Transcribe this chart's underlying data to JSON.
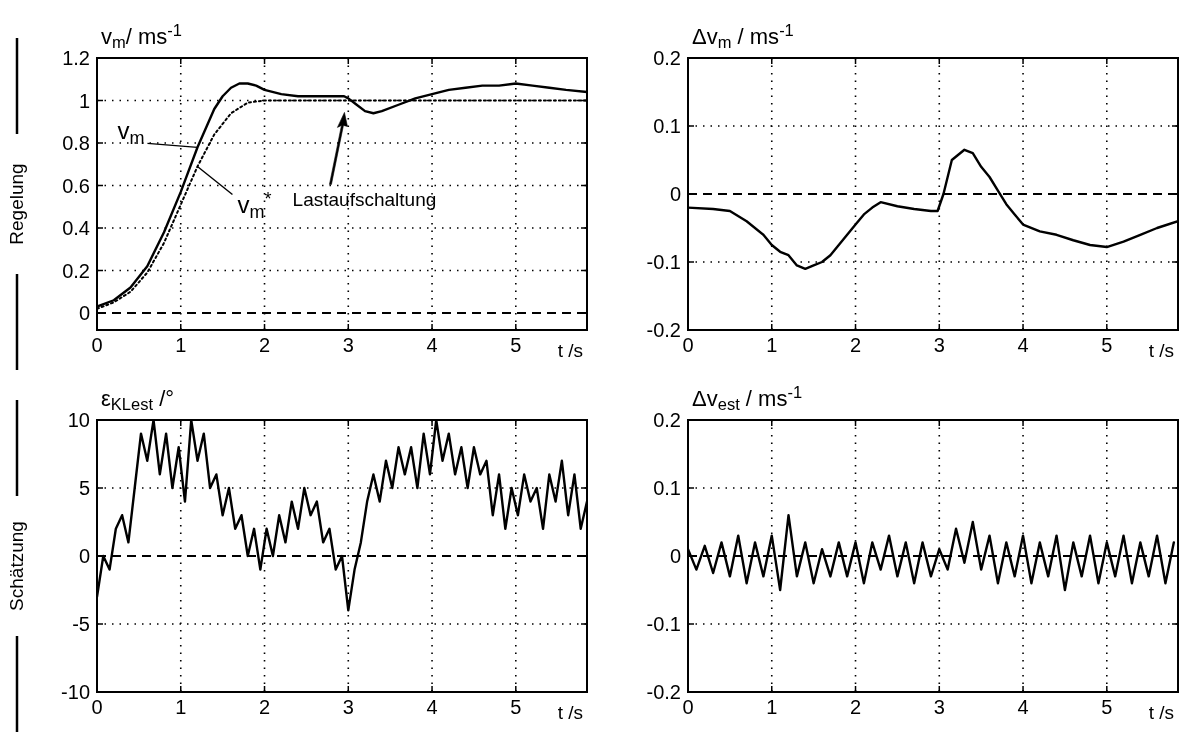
{
  "chart_data": [
    {
      "type": "line",
      "ylabel": "v$_{m}$/ ms$^{-1}$",
      "xlabel": "t /s",
      "xlim": [
        0,
        5.85
      ],
      "ylim": [
        -0.08,
        1.2
      ],
      "xticks": [
        0,
        1,
        2,
        3,
        4,
        5
      ],
      "yticks": [
        0,
        0.2,
        0.4,
        0.6,
        0.8,
        1,
        1.2
      ],
      "grid": true,
      "ref_lines": [
        {
          "axis": "y",
          "value": 0,
          "line_style": "dashed"
        }
      ],
      "annotations": [
        "Regelung",
        "Lastaufschaltung"
      ],
      "series": [
        {
          "name": "v$_{m}$",
          "color": "#000000",
          "line_style": "solid",
          "x": [
            0,
            0.2,
            0.4,
            0.6,
            0.8,
            1.0,
            1.2,
            1.4,
            1.5,
            1.6,
            1.7,
            1.8,
            1.9,
            2.0,
            2.2,
            2.4,
            2.6,
            2.8,
            2.95,
            3.0,
            3.1,
            3.2,
            3.3,
            3.4,
            3.6,
            3.8,
            4.0,
            4.2,
            4.4,
            4.6,
            4.8,
            5.0,
            5.2,
            5.4,
            5.6,
            5.85
          ],
          "values": [
            0.03,
            0.06,
            0.12,
            0.22,
            0.38,
            0.57,
            0.78,
            0.96,
            1.02,
            1.06,
            1.08,
            1.08,
            1.07,
            1.05,
            1.03,
            1.02,
            1.02,
            1.02,
            1.02,
            1.01,
            0.98,
            0.95,
            0.94,
            0.95,
            0.98,
            1.01,
            1.03,
            1.05,
            1.06,
            1.07,
            1.07,
            1.08,
            1.07,
            1.06,
            1.05,
            1.04
          ]
        },
        {
          "name": "v$_{m}$$^{*}$",
          "color": "#000000",
          "line_style": "dotted",
          "x": [
            0,
            0.2,
            0.4,
            0.6,
            0.8,
            1.0,
            1.2,
            1.4,
            1.6,
            1.8,
            2.0,
            5.85
          ],
          "values": [
            0.02,
            0.05,
            0.1,
            0.19,
            0.33,
            0.51,
            0.69,
            0.84,
            0.94,
            0.99,
            1.0,
            1.0
          ]
        }
      ]
    },
    {
      "type": "line",
      "ylabel": "Δv$_{m}$  / ms$^{-1}$",
      "xlabel": "t /s",
      "xlim": [
        0,
        5.85
      ],
      "ylim": [
        -0.2,
        0.2
      ],
      "xticks": [
        0,
        1,
        2,
        3,
        4,
        5
      ],
      "yticks": [
        -0.2,
        -0.1,
        0,
        0.1,
        0.2
      ],
      "grid": true,
      "ref_lines": [
        {
          "axis": "y",
          "value": 0,
          "line_style": "dashed"
        }
      ],
      "series": [
        {
          "color": "#000000",
          "line_style": "solid",
          "x": [
            0,
            0.3,
            0.5,
            0.7,
            0.9,
            1.0,
            1.1,
            1.2,
            1.3,
            1.4,
            1.5,
            1.6,
            1.7,
            1.8,
            1.9,
            2.0,
            2.1,
            2.2,
            2.3,
            2.5,
            2.7,
            2.9,
            2.98,
            3.05,
            3.15,
            3.3,
            3.4,
            3.5,
            3.6,
            3.7,
            3.8,
            3.9,
            4.0,
            4.2,
            4.4,
            4.6,
            4.8,
            5.0,
            5.2,
            5.4,
            5.6,
            5.85
          ],
          "values": [
            -0.02,
            -0.022,
            -0.025,
            -0.04,
            -0.06,
            -0.075,
            -0.085,
            -0.09,
            -0.105,
            -0.11,
            -0.105,
            -0.1,
            -0.09,
            -0.075,
            -0.06,
            -0.045,
            -0.03,
            -0.02,
            -0.012,
            -0.018,
            -0.022,
            -0.025,
            -0.025,
            0,
            0.05,
            0.065,
            0.06,
            0.04,
            0.025,
            0.005,
            -0.015,
            -0.03,
            -0.045,
            -0.055,
            -0.06,
            -0.068,
            -0.075,
            -0.078,
            -0.07,
            -0.06,
            -0.05,
            -0.04
          ]
        }
      ]
    },
    {
      "type": "line",
      "ylabel": "ε$_{KLest}$ /°",
      "xlabel": "t /s",
      "xlim": [
        0,
        5.85
      ],
      "ylim": [
        -10,
        10
      ],
      "xticks": [
        0,
        1,
        2,
        3,
        4,
        5
      ],
      "yticks": [
        -10,
        -5,
        0,
        5,
        10
      ],
      "grid": true,
      "ref_lines": [
        {
          "axis": "y",
          "value": 0,
          "line_style": "dashed"
        }
      ],
      "annotations": [
        "Schätzung"
      ],
      "series": [
        {
          "color": "#000000",
          "line_style": "solid",
          "x": [
            0,
            0.075,
            0.15,
            0.225,
            0.3,
            0.375,
            0.45,
            0.525,
            0.6,
            0.675,
            0.75,
            0.825,
            0.9,
            0.975,
            1.05,
            1.125,
            1.2,
            1.275,
            1.35,
            1.425,
            1.5,
            1.575,
            1.65,
            1.725,
            1.8,
            1.875,
            1.95,
            2.025,
            2.1,
            2.175,
            2.25,
            2.325,
            2.4,
            2.475,
            2.55,
            2.625,
            2.7,
            2.775,
            2.85,
            2.925,
            3.0,
            3.075,
            3.15,
            3.225,
            3.3,
            3.375,
            3.45,
            3.525,
            3.6,
            3.675,
            3.75,
            3.825,
            3.9,
            3.975,
            4.05,
            4.125,
            4.2,
            4.275,
            4.35,
            4.425,
            4.5,
            4.575,
            4.65,
            4.725,
            4.8,
            4.875,
            4.95,
            5.025,
            5.1,
            5.175,
            5.25,
            5.325,
            5.4,
            5.475,
            5.55,
            5.625,
            5.7,
            5.775,
            5.85
          ],
          "values": [
            -3,
            0,
            -1,
            2,
            3,
            1,
            5,
            9,
            7,
            10,
            6,
            9,
            5,
            8,
            4,
            10,
            7,
            9,
            5,
            6,
            3,
            5,
            2,
            3,
            0,
            2,
            -1,
            2,
            0,
            3,
            1,
            4,
            2,
            5,
            3,
            4,
            1,
            2,
            -1,
            0,
            -4,
            -1,
            1,
            4,
            6,
            4,
            7,
            5,
            8,
            6,
            8,
            5,
            9,
            6,
            10,
            7,
            9,
            6,
            8,
            5,
            8,
            6,
            7,
            3,
            6,
            2,
            5,
            3,
            6,
            4,
            5,
            2,
            6,
            4,
            7,
            3,
            6,
            2,
            4
          ]
        }
      ]
    },
    {
      "type": "line",
      "ylabel": "Δv$_{est}$  / ms$^{-1}$",
      "xlabel": "t /s",
      "xlim": [
        0,
        5.85
      ],
      "ylim": [
        -0.2,
        0.2
      ],
      "xticks": [
        0,
        1,
        2,
        3,
        4,
        5
      ],
      "yticks": [
        -0.2,
        -0.1,
        0,
        0.1,
        0.2
      ],
      "grid": true,
      "ref_lines": [
        {
          "axis": "y",
          "value": 0,
          "line_style": "dashed"
        }
      ],
      "series": [
        {
          "color": "#000000",
          "line_style": "solid",
          "x": [
            0,
            0.1,
            0.2,
            0.3,
            0.4,
            0.5,
            0.6,
            0.7,
            0.8,
            0.9,
            1.0,
            1.1,
            1.2,
            1.3,
            1.4,
            1.5,
            1.6,
            1.7,
            1.8,
            1.9,
            2.0,
            2.1,
            2.2,
            2.3,
            2.4,
            2.5,
            2.6,
            2.7,
            2.8,
            2.9,
            3.0,
            3.1,
            3.2,
            3.3,
            3.4,
            3.5,
            3.6,
            3.7,
            3.8,
            3.9,
            4.0,
            4.1,
            4.2,
            4.3,
            4.4,
            4.5,
            4.6,
            4.7,
            4.8,
            4.9,
            5.0,
            5.1,
            5.2,
            5.3,
            5.4,
            5.5,
            5.6,
            5.7,
            5.8
          ],
          "values": [
            0.01,
            -0.02,
            0.015,
            -0.025,
            0.02,
            -0.03,
            0.03,
            -0.04,
            0.02,
            -0.03,
            0.03,
            -0.05,
            0.06,
            -0.03,
            0.02,
            -0.04,
            0.01,
            -0.03,
            0.02,
            -0.03,
            0.02,
            -0.04,
            0.02,
            -0.02,
            0.03,
            -0.03,
            0.02,
            -0.04,
            0.02,
            -0.03,
            0.01,
            -0.02,
            0.04,
            -0.01,
            0.05,
            -0.02,
            0.03,
            -0.04,
            0.02,
            -0.03,
            0.03,
            -0.04,
            0.02,
            -0.03,
            0.03,
            -0.05,
            0.02,
            -0.03,
            0.03,
            -0.04,
            0.02,
            -0.03,
            0.03,
            -0.04,
            0.02,
            -0.03,
            0.03,
            -0.04,
            0.02
          ]
        }
      ]
    }
  ]
}
